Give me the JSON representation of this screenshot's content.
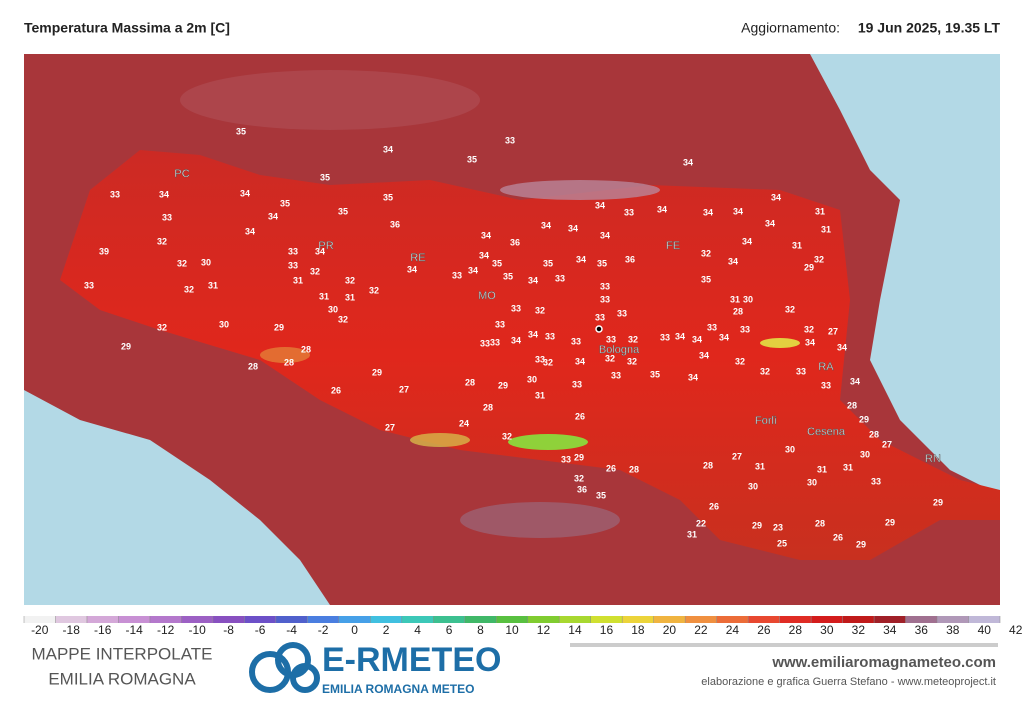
{
  "header": {
    "title": "Temperatura Massima a 2m [C]",
    "update_label": "Aggiornamento:",
    "update_value": "19 Jun 2025, 19.35 LT"
  },
  "map": {
    "cities": [
      "PC",
      "PR",
      "RE",
      "MO",
      "FE",
      "Bologna",
      "RA",
      "Forlì",
      "Cesena",
      "RN"
    ],
    "stations": [
      35,
      34,
      33,
      35,
      34,
      35,
      33,
      34,
      34,
      35,
      35,
      34,
      35,
      36,
      33,
      34,
      32,
      39,
      33,
      34,
      32,
      30,
      33,
      32,
      32,
      34,
      33,
      34,
      33,
      32,
      31,
      31,
      32,
      31,
      31,
      30,
      32,
      32,
      30,
      29,
      29,
      28,
      28,
      28,
      29,
      26,
      27,
      27,
      28,
      29,
      28,
      31,
      33,
      26,
      30,
      24,
      32,
      33,
      32,
      34,
      33,
      35,
      34,
      34,
      32,
      32,
      33,
      33,
      28,
      29,
      28,
      27,
      30,
      31,
      31,
      30,
      31,
      27,
      28,
      30,
      30,
      33,
      29,
      29,
      29,
      28,
      26,
      23,
      29,
      25,
      26,
      22,
      31,
      29,
      26,
      28,
      32,
      36,
      35,
      33,
      34,
      31,
      31,
      31,
      29,
      32,
      34,
      34,
      34,
      34,
      34,
      32,
      35,
      31,
      30,
      28,
      32,
      32,
      27,
      34,
      34,
      34,
      34,
      34,
      34,
      33,
      34,
      34,
      36,
      35,
      35,
      34,
      36,
      34,
      34,
      35,
      35,
      34,
      33,
      33,
      33,
      33,
      33,
      32,
      33,
      33,
      34,
      33,
      34,
      33,
      33,
      33,
      33,
      32,
      32,
      32,
      33,
      34,
      34,
      33,
      34,
      33
    ]
  },
  "colorbar": {
    "ticks": [
      -20,
      -18,
      -16,
      -14,
      -12,
      -10,
      -8,
      -6,
      -4,
      -2,
      0,
      2,
      4,
      6,
      8,
      10,
      12,
      14,
      16,
      18,
      20,
      22,
      24,
      26,
      28,
      30,
      32,
      34,
      36,
      38,
      40,
      42
    ]
  },
  "footer": {
    "left_line1": "MAPPE INTERPOLATE",
    "left_line2": "EMILIA ROMAGNA",
    "logo": "E-RMETEO",
    "logo_sub": "EMILIA ROMAGNA METEO",
    "website": "www.emiliaromagnameteo.com",
    "credit": "elaborazione e grafica Guerra Stefano - www.meteoproject.it"
  }
}
